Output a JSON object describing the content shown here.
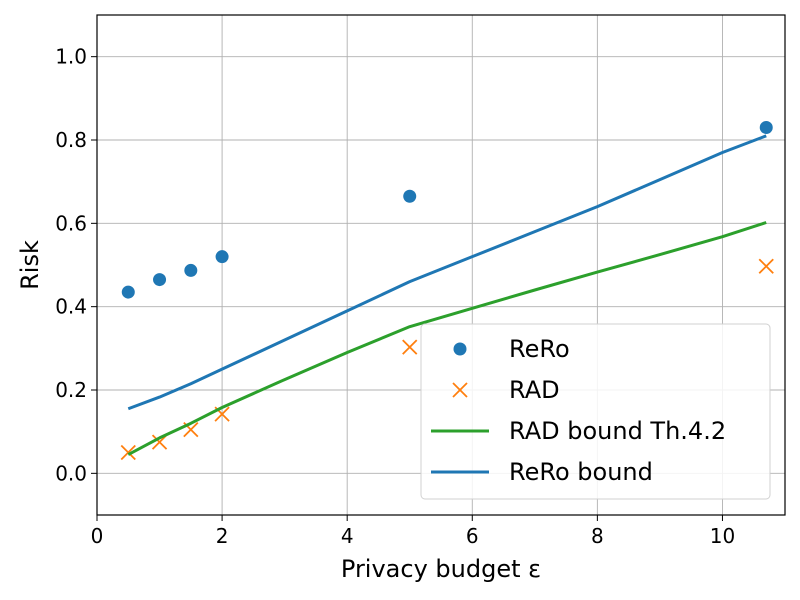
{
  "chart_data": {
    "type": "line",
    "xlabel": "Privacy budget ε",
    "ylabel": "Risk",
    "xlim": [
      0,
      11
    ],
    "ylim": [
      -0.1,
      1.1
    ],
    "xticks": [
      0,
      2,
      4,
      6,
      8,
      10
    ],
    "yticks": [
      0.0,
      0.2,
      0.4,
      0.6,
      0.8,
      1.0
    ],
    "grid": true,
    "legend_position": "lower-right",
    "series": [
      {
        "name": "ReRo",
        "kind": "scatter",
        "marker": "circle",
        "color": "#1f77b4",
        "x": [
          0.5,
          1.0,
          1.5,
          2.0,
          5.0,
          10.7
        ],
        "y": [
          0.435,
          0.465,
          0.487,
          0.52,
          0.665,
          0.83
        ]
      },
      {
        "name": "RAD",
        "kind": "scatter",
        "marker": "x",
        "color": "#ff7f0e",
        "x": [
          0.5,
          1.0,
          1.5,
          2.0,
          5.0,
          10.7
        ],
        "y": [
          0.05,
          0.075,
          0.105,
          0.142,
          0.303,
          0.497
        ]
      },
      {
        "name": "RAD bound Th.4.2",
        "kind": "line",
        "color": "#2ca02c",
        "x": [
          0.5,
          1.0,
          1.5,
          2.0,
          3.0,
          4.0,
          5.0,
          6.0,
          7.0,
          8.0,
          9.0,
          10.0,
          10.7
        ],
        "y": [
          0.045,
          0.085,
          0.12,
          0.158,
          0.225,
          0.29,
          0.352,
          0.396,
          0.44,
          0.483,
          0.525,
          0.568,
          0.602
        ]
      },
      {
        "name": "ReRo bound",
        "kind": "line",
        "color": "#1f77b4",
        "x": [
          0.5,
          1.0,
          1.5,
          2.0,
          3.0,
          4.0,
          5.0,
          6.0,
          7.0,
          8.0,
          9.0,
          10.0,
          10.7
        ],
        "y": [
          0.155,
          0.183,
          0.215,
          0.25,
          0.32,
          0.39,
          0.46,
          0.52,
          0.58,
          0.64,
          0.705,
          0.77,
          0.81
        ]
      }
    ]
  }
}
